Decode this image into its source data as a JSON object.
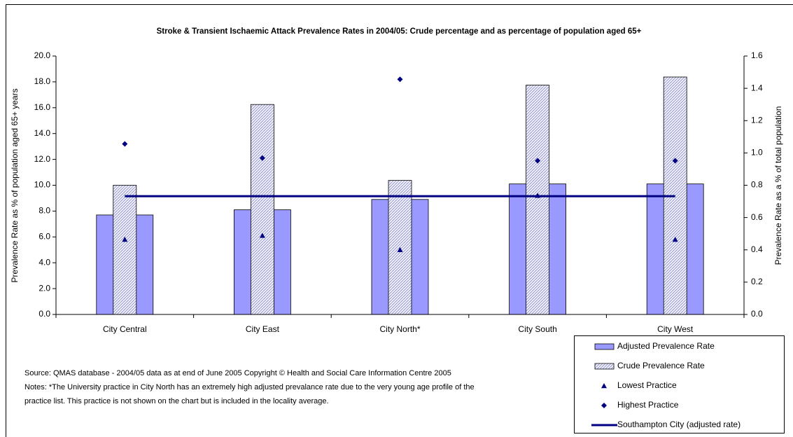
{
  "chart_data": {
    "type": "bar",
    "title": "Stroke & Transient Ischaemic Attack Prevalence Rates in 2004/05: Crude percentage and as percentage of population aged 65+",
    "y_label": "Prevalence Rate as % of population aged 65+ years",
    "y2_label": "Prevalence Rate as a % of total population",
    "categories": [
      "City Central",
      "City East",
      "City North*",
      "City South",
      "City West"
    ],
    "series": [
      {
        "name": "Adjusted Prevalence Rate",
        "color": "#9999ff",
        "style": "bar",
        "values": [
          7.7,
          8.1,
          8.9,
          10.1,
          10.1
        ]
      },
      {
        "name": "Crude Prevalence Rate",
        "color": "#e6e6ff",
        "style": "hatched-bar",
        "axis": "y2",
        "values": [
          0.8,
          1.3,
          0.83,
          1.42,
          1.47
        ]
      },
      {
        "name": "Lowest Practice",
        "color": "#000080",
        "style": "triangle",
        "values": [
          5.8,
          6.1,
          5.0,
          9.2,
          5.8
        ]
      },
      {
        "name": "Highest Practice",
        "color": "#000080",
        "style": "diamond",
        "values": [
          13.2,
          12.1,
          18.2,
          11.9,
          11.9
        ]
      },
      {
        "name": "Southampton City (adjusted rate)",
        "color": "#000080",
        "style": "line",
        "values": [
          9.15,
          9.15,
          9.15,
          9.15,
          9.15
        ]
      }
    ],
    "ylim": [
      0,
      20
    ],
    "yticks": [
      {
        "value": 0,
        "label": "0.0"
      },
      {
        "value": 2,
        "label": "2.0"
      },
      {
        "value": 4,
        "label": "4.0"
      },
      {
        "value": 6,
        "label": "6.0"
      },
      {
        "value": 8,
        "label": "8.0"
      },
      {
        "value": 10,
        "label": "10.0"
      },
      {
        "value": 12,
        "label": "12.0"
      },
      {
        "value": 14,
        "label": "14.0"
      },
      {
        "value": 16,
        "label": "16.0"
      },
      {
        "value": 18,
        "label": "18.0"
      },
      {
        "value": 20,
        "label": "20.0"
      }
    ],
    "y2lim": [
      0,
      1.6
    ],
    "y2ticks": [
      {
        "value": 0,
        "label": "0.0"
      },
      0.2,
      0.4,
      0.6,
      0.8,
      {
        "value": 1,
        "label": "1.0"
      },
      1.2,
      1.4,
      1.6
    ],
    "source": "Source: QMAS database - 2004/05 data as at end of June 2005 Copyright © Health and Social Care Information Centre 2005",
    "notes": [
      "Notes: *The University practice in City North has an extremely high adjusted prevalance rate due to the very young age profile of the",
      "practice list. This practice is not shown on the chart but is included in the locality average."
    ]
  }
}
